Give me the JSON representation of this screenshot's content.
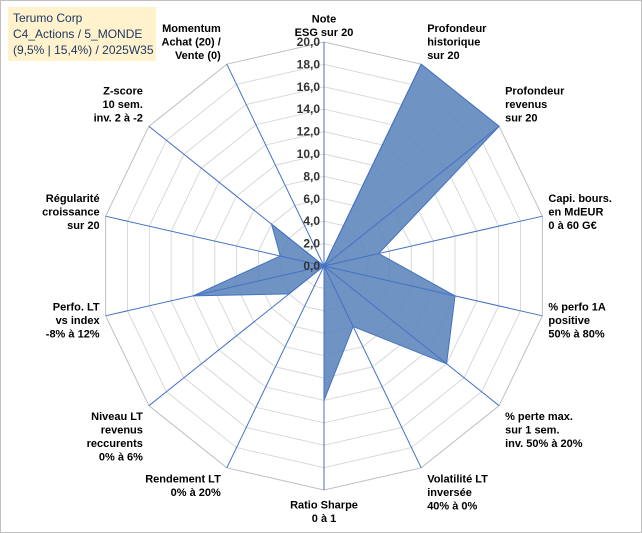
{
  "title_box": {
    "line1": "Terumo Corp",
    "line2": "C4_Actions / 5_MONDE",
    "line3": "(9,5% | 15,4%) / 2025W35"
  },
  "chart_data": {
    "type": "radar",
    "rmin": 0,
    "rmax": 20,
    "tick_step": 2,
    "tick_labels": [
      "0,0",
      "2,0",
      "4,0",
      "6,0",
      "8,0",
      "10,0",
      "12,0",
      "14,0",
      "16,0",
      "18,0",
      "20,0"
    ],
    "axes": [
      {
        "label": [
          "Note",
          "ESG sur 20"
        ],
        "value": 0
      },
      {
        "label": [
          "Profondeur",
          "historique",
          "sur 20"
        ],
        "value": 20
      },
      {
        "label": [
          "Profondeur",
          "revenus",
          "sur 20"
        ],
        "value": 20
      },
      {
        "label": [
          "Capi. bours.",
          "en MdEUR",
          "0 à 60 G€"
        ],
        "value": 5
      },
      {
        "label": [
          "% perfo 1A",
          "positive",
          "50% à 80%"
        ],
        "value": 12
      },
      {
        "label": [
          "% perte max.",
          "sur 1 sem.",
          "inv. 50% à 20%"
        ],
        "value": 14
      },
      {
        "label": [
          "Volatilité LT",
          "inversée",
          "40% à 0%"
        ],
        "value": 6
      },
      {
        "label": [
          "Ratio Sharpe",
          "0 à 1"
        ],
        "value": 12
      },
      {
        "label": [
          "Rendement LT",
          "0% à 20%"
        ],
        "value": 0
      },
      {
        "label": [
          "Niveau LT",
          "revenus",
          "reccurents",
          "0% à 6%"
        ],
        "value": 4
      },
      {
        "label": [
          "Perfo. LT",
          "vs index",
          "-8% à 12%"
        ],
        "value": 12
      },
      {
        "label": [
          "Régularité",
          "croissance",
          "sur 20"
        ],
        "value": 4
      },
      {
        "label": [
          "Z-score",
          "10 sem.",
          "inv. 2 à -2"
        ],
        "value": 6
      },
      {
        "label": [
          "Momentum",
          "Achat (20) /",
          "Vente (0)"
        ],
        "value": 0
      }
    ],
    "colors": {
      "fill": "#5b84bb",
      "stroke": "#4472c4",
      "axis": "#4472c4",
      "grid": "#d9d9d9"
    }
  }
}
